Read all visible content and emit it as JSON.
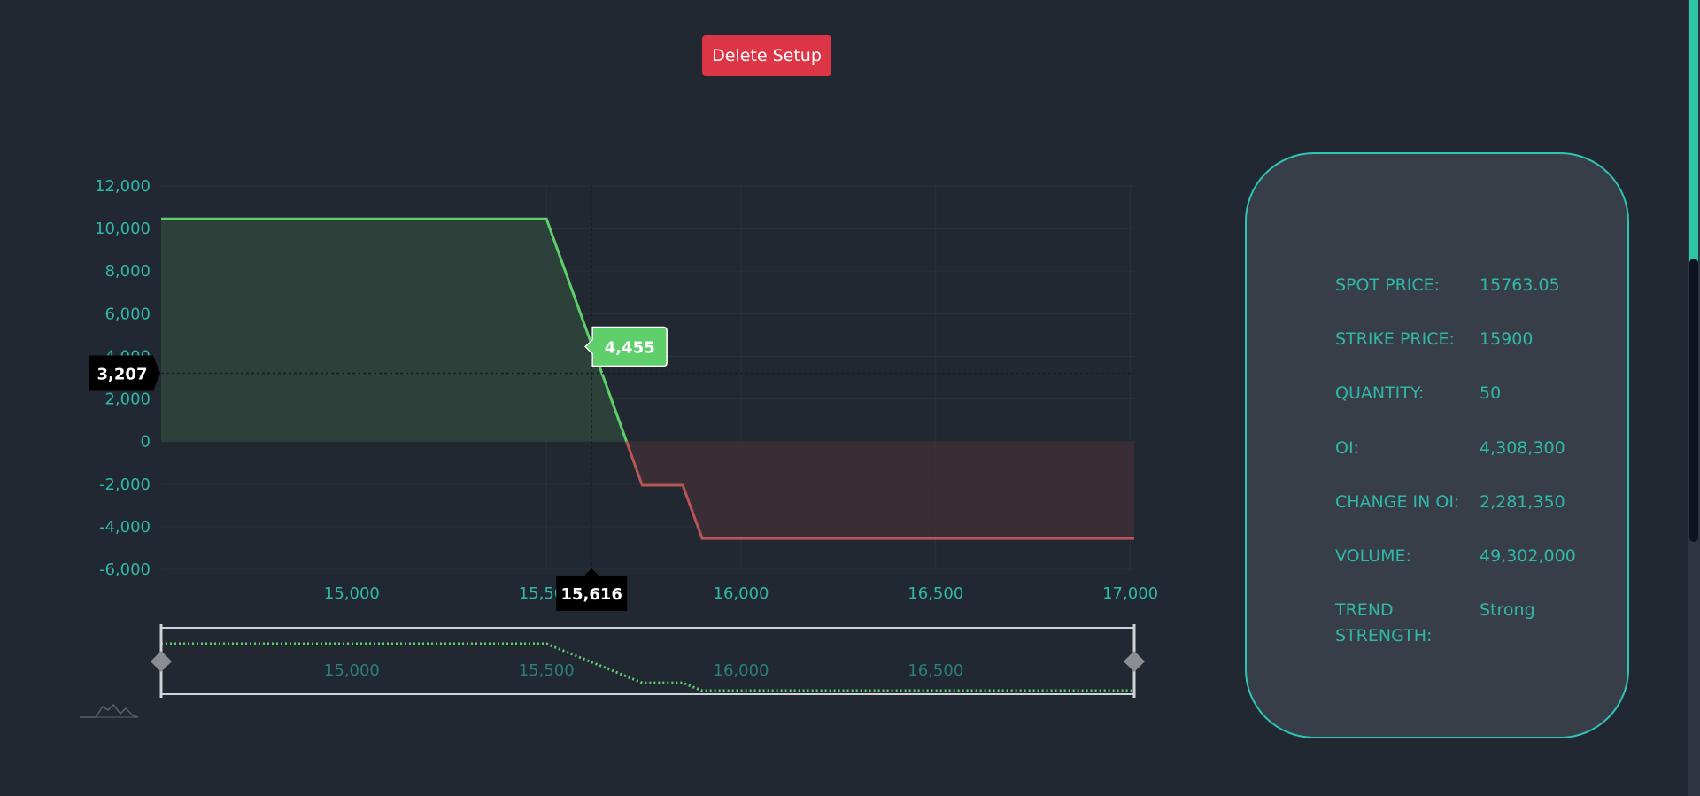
{
  "toolbar": {
    "delete_label": "Delete Setup"
  },
  "chart_data": {
    "type": "line",
    "x": [
      14510,
      15500,
      15746,
      15850,
      15900,
      17010
    ],
    "y": [
      10450,
      10450,
      -2050,
      -2050,
      -4550,
      -4550
    ],
    "xlim": [
      14510,
      17010
    ],
    "ylim": [
      -6000,
      12000
    ],
    "yticks": [
      12000,
      10000,
      8000,
      6000,
      4000,
      2000,
      0,
      -2000,
      -4000,
      -6000
    ],
    "ytick_labels": [
      "12,000",
      "10,000",
      "8,000",
      "6,000",
      "4,000",
      "2,000",
      "0",
      "-2,000",
      "-4,000",
      "-6,000"
    ],
    "xticks": [
      15000,
      15500,
      16000,
      16500,
      17000
    ],
    "xtick_labels": [
      "15,000",
      "15,500",
      "16,000",
      "16,500",
      "17,000"
    ],
    "crosshair": {
      "x_label": "15,616",
      "y_label": "3,207",
      "x_value": 15616,
      "y_value": 3207
    },
    "tooltip": {
      "label": "4,455",
      "value": 4455
    },
    "navigator": {
      "xtick_labels": [
        "15,000",
        "15,500",
        "16,000",
        "16,500"
      ],
      "xticks": [
        15000,
        15500,
        16000,
        16500
      ]
    },
    "grid": true,
    "colors": {
      "profit": "#5ecf6a",
      "loss": "#b85555",
      "axis_text": "#2fb8a8"
    }
  },
  "info": [
    {
      "label": "SPOT PRICE:",
      "value": "15763.05"
    },
    {
      "label": "STRIKE PRICE:",
      "value": "15900"
    },
    {
      "label": "QUANTITY:",
      "value": "50"
    },
    {
      "label": "OI:",
      "value": "4,308,300"
    },
    {
      "label": "CHANGE IN OI:",
      "value": "2,281,350"
    },
    {
      "label": "VOLUME:",
      "value": "49,302,000"
    },
    {
      "label": "TREND STRENGTH:",
      "value": "Strong"
    }
  ]
}
